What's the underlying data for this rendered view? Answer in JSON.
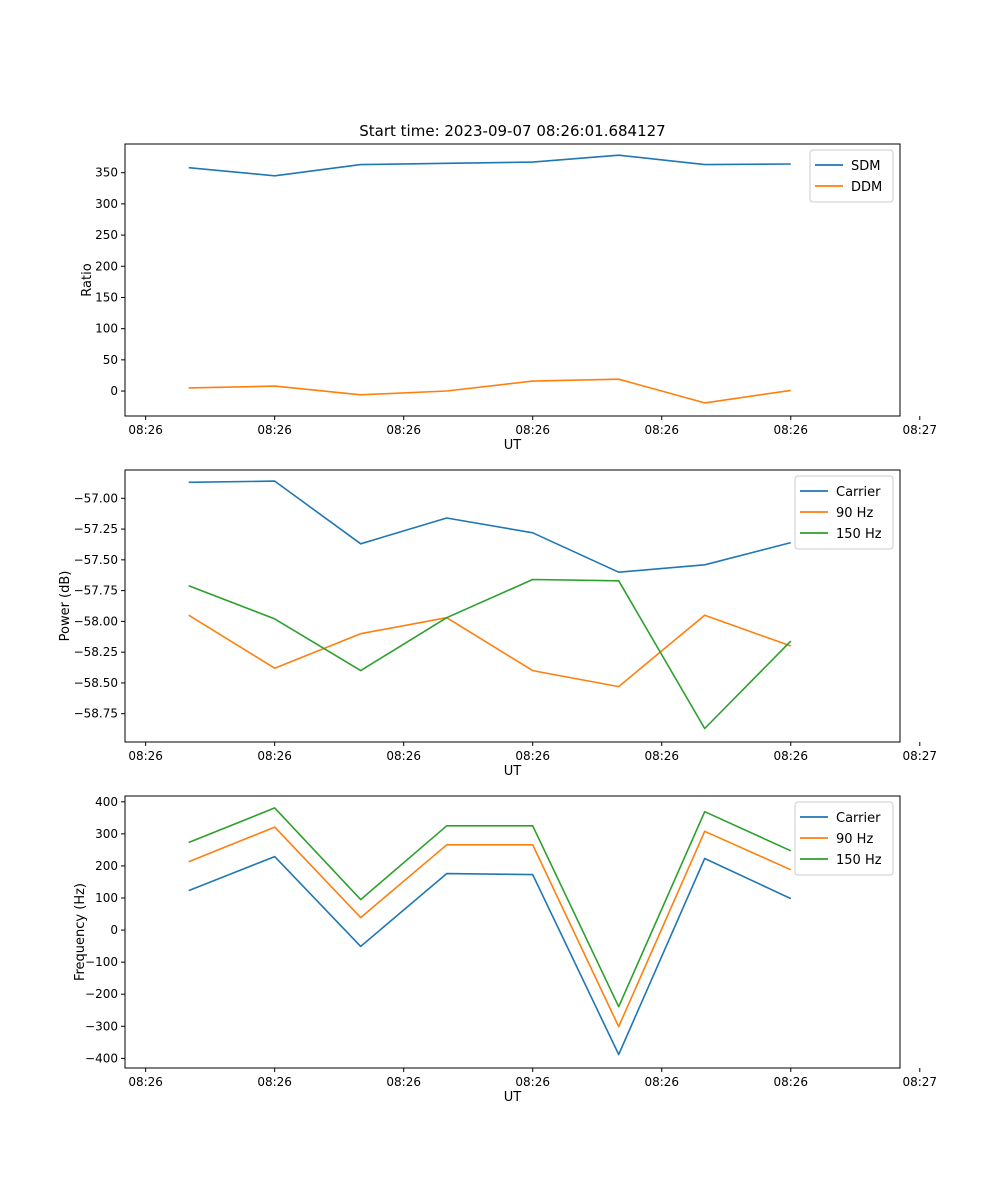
{
  "chart_data": [
    {
      "type": "line",
      "title": "Start time: 2023-09-07 08:26:01.684127",
      "xlabel": "UT",
      "ylabel": "Ratio",
      "x": [
        1,
        2,
        3,
        4,
        5,
        6,
        7,
        8
      ],
      "xlim": [
        0.26,
        9.27
      ],
      "xticks": [
        0.5,
        2,
        3.5,
        5,
        6.5,
        8,
        9.5
      ],
      "xtick_labels": [
        "08:26",
        "08:26",
        "08:26",
        "08:26",
        "08:26",
        "08:26",
        "08:27"
      ],
      "ylim": [
        -40,
        396
      ],
      "yticks": [
        0,
        50,
        100,
        150,
        200,
        250,
        300,
        350
      ],
      "ytick_labels": [
        "0",
        "50",
        "100",
        "150",
        "200",
        "250",
        "300",
        "350"
      ],
      "legend": "top-right",
      "series": [
        {
          "name": "SDM",
          "color": "#1f77b4",
          "values": [
            358,
            345,
            363,
            365,
            367,
            378,
            363,
            364
          ]
        },
        {
          "name": "DDM",
          "color": "#ff7f0e",
          "values": [
            5,
            8,
            -6,
            0,
            16,
            19,
            -19,
            1
          ]
        }
      ]
    },
    {
      "type": "line",
      "title": "",
      "xlabel": "UT",
      "ylabel": "Power (dB)",
      "x": [
        1,
        2,
        3,
        4,
        5,
        6,
        7,
        8
      ],
      "xlim": [
        0.26,
        9.27
      ],
      "xticks": [
        0.5,
        2,
        3.5,
        5,
        6.5,
        8,
        9.5
      ],
      "xtick_labels": [
        "08:26",
        "08:26",
        "08:26",
        "08:26",
        "08:26",
        "08:26",
        "08:27"
      ],
      "ylim": [
        -58.98,
        -56.77
      ],
      "yticks": [
        -57.0,
        -57.25,
        -57.5,
        -57.75,
        -58.0,
        -58.25,
        -58.5,
        -58.75
      ],
      "ytick_labels": [
        "−57.00",
        "−57.25",
        "−57.50",
        "−57.75",
        "−58.00",
        "−58.25",
        "−58.50",
        "−58.75"
      ],
      "legend": "top-right",
      "series": [
        {
          "name": "Carrier",
          "color": "#1f77b4",
          "values": [
            -56.87,
            -56.86,
            -57.37,
            -57.16,
            -57.28,
            -57.6,
            -57.54,
            -57.36
          ]
        },
        {
          "name": "90 Hz",
          "color": "#ff7f0e",
          "values": [
            -57.95,
            -58.38,
            -58.1,
            -57.97,
            -58.4,
            -58.53,
            -57.95,
            -58.2
          ]
        },
        {
          "name": "150 Hz",
          "color": "#2ca02c",
          "values": [
            -57.71,
            -57.98,
            -58.4,
            -57.97,
            -57.66,
            -57.67,
            -58.87,
            -58.16
          ]
        }
      ]
    },
    {
      "type": "line",
      "title": "",
      "xlabel": "UT",
      "ylabel": "Frequency (Hz)",
      "x": [
        1,
        2,
        3,
        4,
        5,
        6,
        7,
        8
      ],
      "xlim": [
        0.26,
        9.27
      ],
      "xticks": [
        0.5,
        2,
        3.5,
        5,
        6.5,
        8,
        9.5
      ],
      "xtick_labels": [
        "08:26",
        "08:26",
        "08:26",
        "08:26",
        "08:26",
        "08:26",
        "08:27"
      ],
      "ylim": [
        -430,
        418
      ],
      "yticks": [
        400,
        300,
        200,
        100,
        0,
        -100,
        -200,
        -300,
        -400
      ],
      "ytick_labels": [
        "400",
        "300",
        "200",
        "100",
        "0",
        "−100",
        "−200",
        "−300",
        "−400"
      ],
      "legend": "top-right",
      "series": [
        {
          "name": "Carrier",
          "color": "#1f77b4",
          "values": [
            123,
            229,
            -51,
            176,
            173,
            -388,
            223,
            98
          ]
        },
        {
          "name": "90 Hz",
          "color": "#ff7f0e",
          "values": [
            213,
            321,
            39,
            266,
            266,
            -301,
            308,
            188
          ]
        },
        {
          "name": "150 Hz",
          "color": "#2ca02c",
          "values": [
            273,
            381,
            95,
            325,
            325,
            -239,
            369,
            247
          ]
        }
      ]
    }
  ]
}
